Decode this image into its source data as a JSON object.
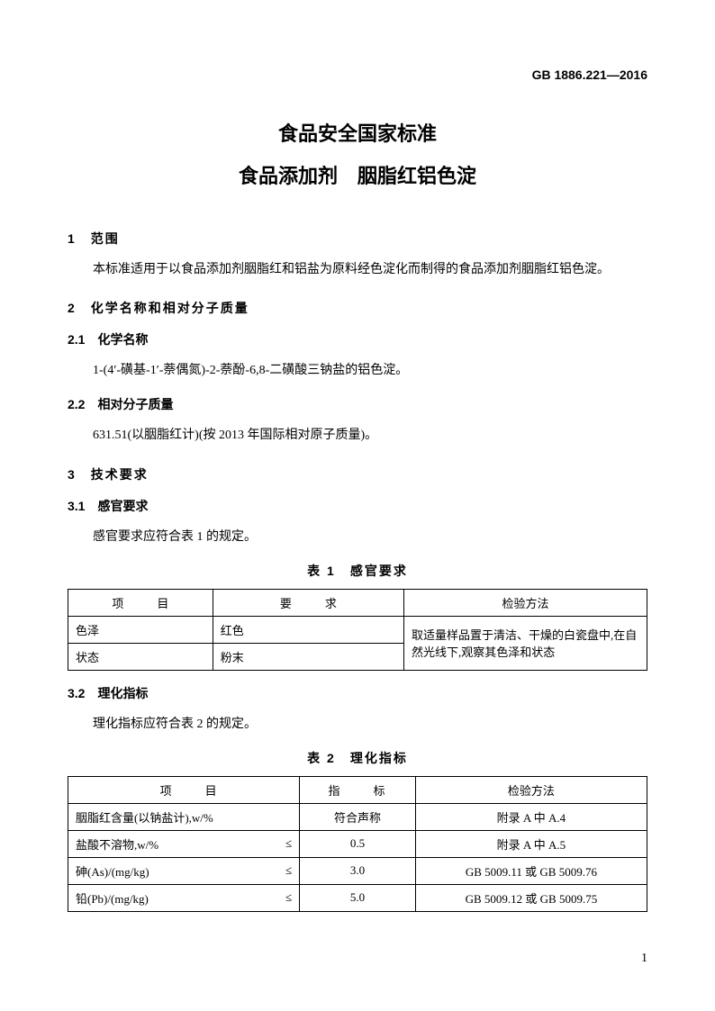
{
  "header_code": "GB 1886.221—2016",
  "title_main": "食品安全国家标准",
  "title_sub": "食品添加剂 胭脂红铝色淀",
  "section1": {
    "heading": "1 范围",
    "text": "本标准适用于以食品添加剂胭脂红和铝盐为原料经色淀化而制得的食品添加剂胭脂红铝色淀。"
  },
  "section2": {
    "heading": "2 化学名称和相对分子质量",
    "sub1": {
      "heading": "2.1 化学名称",
      "text": "1-(4′-磺基-1′-萘偶氮)-2-萘酚-6,8-二磺酸三钠盐的铝色淀。"
    },
    "sub2": {
      "heading": "2.2 相对分子质量",
      "text": "631.51(以胭脂红计)(按 2013 年国际相对原子质量)。"
    }
  },
  "section3": {
    "heading": "3 技术要求",
    "sub1": {
      "heading": "3.1 感官要求",
      "text": "感官要求应符合表 1 的规定。"
    },
    "sub2": {
      "heading": "3.2 理化指标",
      "text": "理化指标应符合表 2 的规定。"
    }
  },
  "table1": {
    "caption": "表 1 感官要求",
    "headers": {
      "item": "项 目",
      "req": "要 求",
      "method": "检验方法"
    },
    "rows": [
      {
        "item": "色泽",
        "req": "红色"
      },
      {
        "item": "状态",
        "req": "粉末"
      }
    ],
    "method_merged": "取适量样品置于清洁、干燥的白瓷盘中,在自然光线下,观察其色泽和状态"
  },
  "table2": {
    "caption": "表 2 理化指标",
    "headers": {
      "item": "项 目",
      "ind": "指 标",
      "method": "检验方法"
    },
    "rows": [
      {
        "item": "胭脂红含量(以钠盐计),w/%",
        "leq": "",
        "ind": "符合声称",
        "method": "附录 A 中 A.4"
      },
      {
        "item": "盐酸不溶物,w/%",
        "leq": "≤",
        "ind": "0.5",
        "method": "附录 A 中 A.5"
      },
      {
        "item": "砷(As)/(mg/kg)",
        "leq": "≤",
        "ind": "3.0",
        "method": "GB 5009.11 或 GB 5009.76"
      },
      {
        "item": "铅(Pb)/(mg/kg)",
        "leq": "≤",
        "ind": "5.0",
        "method": "GB 5009.12 或 GB 5009.75"
      }
    ]
  },
  "page_number": "1",
  "colors": {
    "text": "#000000",
    "background": "#ffffff",
    "border": "#000000"
  }
}
